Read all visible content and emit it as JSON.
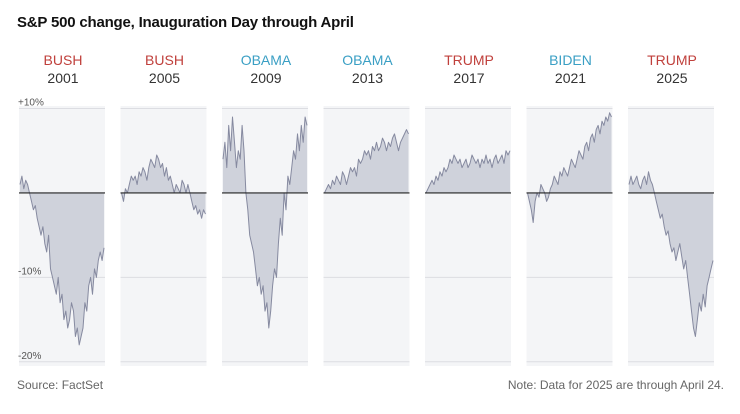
{
  "chart_data": {
    "type": "area",
    "title": "S&P 500 change, Inauguration Day through April",
    "y_unit": "percent change",
    "ylim": [
      -20.5,
      10.3
    ],
    "y_ticks": [
      {
        "value": 10,
        "label": "+10%"
      },
      {
        "value": -10,
        "label": "-10%"
      },
      {
        "value": -20,
        "label": "-20%"
      }
    ],
    "party_colors": {
      "R": "#c0403c",
      "D": "#3a9fc4"
    },
    "fill_color": "#cfd2db",
    "line_color": "#868aa0",
    "panels": [
      {
        "president": "BUSH",
        "year": "2001",
        "party": "R",
        "values": [
          1,
          2,
          0.5,
          1.5,
          1,
          0,
          -1,
          -2,
          -1.5,
          -3,
          -4,
          -5,
          -4,
          -6,
          -7,
          -5,
          -9,
          -10,
          -11,
          -12,
          -10,
          -13,
          -12,
          -15,
          -14,
          -16,
          -15,
          -13,
          -14,
          -17,
          -16,
          -18,
          -17,
          -16,
          -13,
          -14,
          -11,
          -10,
          -12,
          -9,
          -10,
          -8,
          -7,
          -8,
          -6.5
        ]
      },
      {
        "president": "BUSH",
        "year": "2005",
        "party": "R",
        "values": [
          0,
          -1,
          0.5,
          0,
          1,
          2,
          1.5,
          2,
          1,
          2.5,
          2,
          3,
          2.5,
          1.5,
          3,
          4,
          3.5,
          3,
          4.5,
          4,
          3,
          3.5,
          2,
          3,
          1.5,
          2,
          1,
          0,
          1,
          0.5,
          0,
          1.5,
          1,
          0,
          1,
          0,
          -1,
          -2,
          -1.5,
          -2.5,
          -2,
          -3,
          -2,
          -2.5
        ]
      },
      {
        "president": "OBAMA",
        "year": "2009",
        "party": "D",
        "values": [
          4,
          6,
          3,
          8,
          5,
          9,
          6,
          3,
          5,
          4,
          8,
          5,
          0,
          -2,
          -5,
          -6,
          -7,
          -9,
          -11,
          -10,
          -12,
          -11,
          -14,
          -13,
          -16,
          -14,
          -11,
          -9,
          -10,
          -6,
          -3,
          -5,
          0,
          -2,
          2,
          1,
          3,
          5,
          4,
          7,
          5,
          8,
          6,
          9,
          8
        ]
      },
      {
        "president": "OBAMA",
        "year": "2013",
        "party": "D",
        "values": [
          0,
          0.5,
          1,
          0.5,
          1.5,
          1,
          2,
          1.5,
          1,
          2.5,
          2,
          1,
          2,
          3,
          2.5,
          3,
          2,
          4,
          3.5,
          4,
          5,
          4.5,
          5,
          4,
          5.5,
          5,
          6,
          5,
          5.5,
          6.5,
          6,
          5,
          6,
          5.5,
          6.5,
          7,
          6,
          5,
          6,
          6.5,
          7,
          7.5,
          7
        ]
      },
      {
        "president": "TRUMP",
        "year": "2017",
        "party": "R",
        "values": [
          0,
          0.5,
          1,
          1.5,
          1,
          2,
          1.5,
          2.5,
          2,
          3,
          2.5,
          3,
          4,
          3.5,
          4.5,
          4,
          3.5,
          4,
          3,
          3.5,
          4,
          3,
          3.5,
          4.5,
          4,
          3.5,
          4,
          3,
          4,
          3.5,
          4.5,
          3.5,
          4,
          3,
          4,
          4.5,
          3.5,
          4,
          4.5,
          3.5,
          5,
          4.5,
          5
        ]
      },
      {
        "president": "BIDEN",
        "year": "2021",
        "party": "D",
        "values": [
          0,
          -1,
          -2,
          -3.5,
          -1,
          0,
          -0.5,
          1,
          0.5,
          0,
          -1,
          -0.5,
          0.5,
          1,
          2,
          1.5,
          1,
          2.5,
          2,
          3,
          2.5,
          2,
          3,
          4,
          3.5,
          3,
          4,
          5,
          4.5,
          4,
          5.5,
          6,
          5,
          6.5,
          7,
          6,
          7.5,
          8,
          7,
          8.5,
          8,
          9,
          8.5,
          9.5,
          9
        ]
      },
      {
        "president": "TRUMP",
        "year": "2025",
        "party": "R",
        "values": [
          1,
          2,
          1,
          1.5,
          2,
          1,
          0.5,
          1.5,
          2,
          1,
          2.5,
          1.5,
          1,
          0,
          -1,
          -2,
          -3,
          -2.5,
          -4,
          -5,
          -4.5,
          -6,
          -7,
          -6.5,
          -8,
          -7,
          -6,
          -7.5,
          -9,
          -8,
          -10,
          -12,
          -14,
          -16,
          -17,
          -15,
          -13,
          -14,
          -12,
          -13.5,
          -11,
          -10,
          -9,
          -8
        ]
      }
    ],
    "source": "Source: FactSet",
    "note": "Note: Data for 2025 are through April 24."
  }
}
